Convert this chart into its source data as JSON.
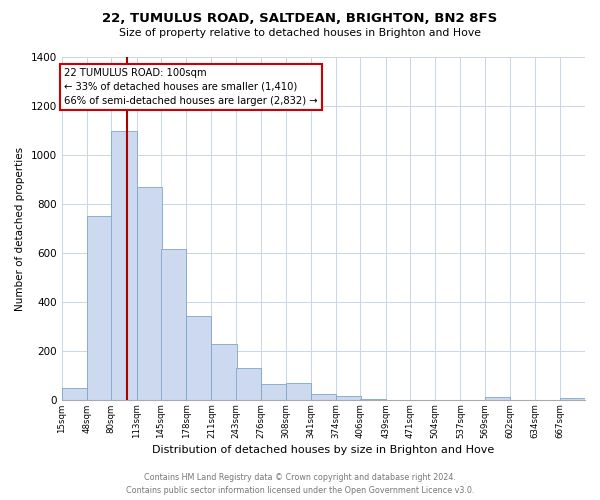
{
  "title": "22, TUMULUS ROAD, SALTDEAN, BRIGHTON, BN2 8FS",
  "subtitle": "Size of property relative to detached houses in Brighton and Hove",
  "xlabel": "Distribution of detached houses by size in Brighton and Hove",
  "ylabel": "Number of detached properties",
  "bar_color": "#cdd9ee",
  "bar_edge_color": "#7da5cc",
  "annotation_title": "22 TUMULUS ROAD: 100sqm",
  "annotation_line1": "← 33% of detached houses are smaller (1,410)",
  "annotation_line2": "66% of semi-detached houses are larger (2,832) →",
  "vline_x": 100,
  "vline_color": "#aa0000",
  "bins": [
    15,
    48,
    80,
    113,
    145,
    178,
    211,
    243,
    276,
    308,
    341,
    374,
    406,
    439,
    471,
    504,
    537,
    569,
    602,
    634,
    667
  ],
  "bin_labels": [
    "15sqm",
    "48sqm",
    "80sqm",
    "113sqm",
    "145sqm",
    "178sqm",
    "211sqm",
    "243sqm",
    "276sqm",
    "308sqm",
    "341sqm",
    "374sqm",
    "406sqm",
    "439sqm",
    "471sqm",
    "504sqm",
    "537sqm",
    "569sqm",
    "602sqm",
    "634sqm",
    "667sqm"
  ],
  "counts": [
    50,
    750,
    1095,
    870,
    615,
    345,
    228,
    130,
    65,
    70,
    25,
    18,
    5,
    3,
    0,
    0,
    0,
    12,
    0,
    0,
    10
  ],
  "ylim": [
    0,
    1400
  ],
  "yticks": [
    0,
    200,
    400,
    600,
    800,
    1000,
    1200,
    1400
  ],
  "footer_line1": "Contains HM Land Registry data © Crown copyright and database right 2024.",
  "footer_line2": "Contains public sector information licensed under the Open Government Licence v3.0.",
  "background_color": "#ffffff",
  "grid_color": "#c8d5e5"
}
